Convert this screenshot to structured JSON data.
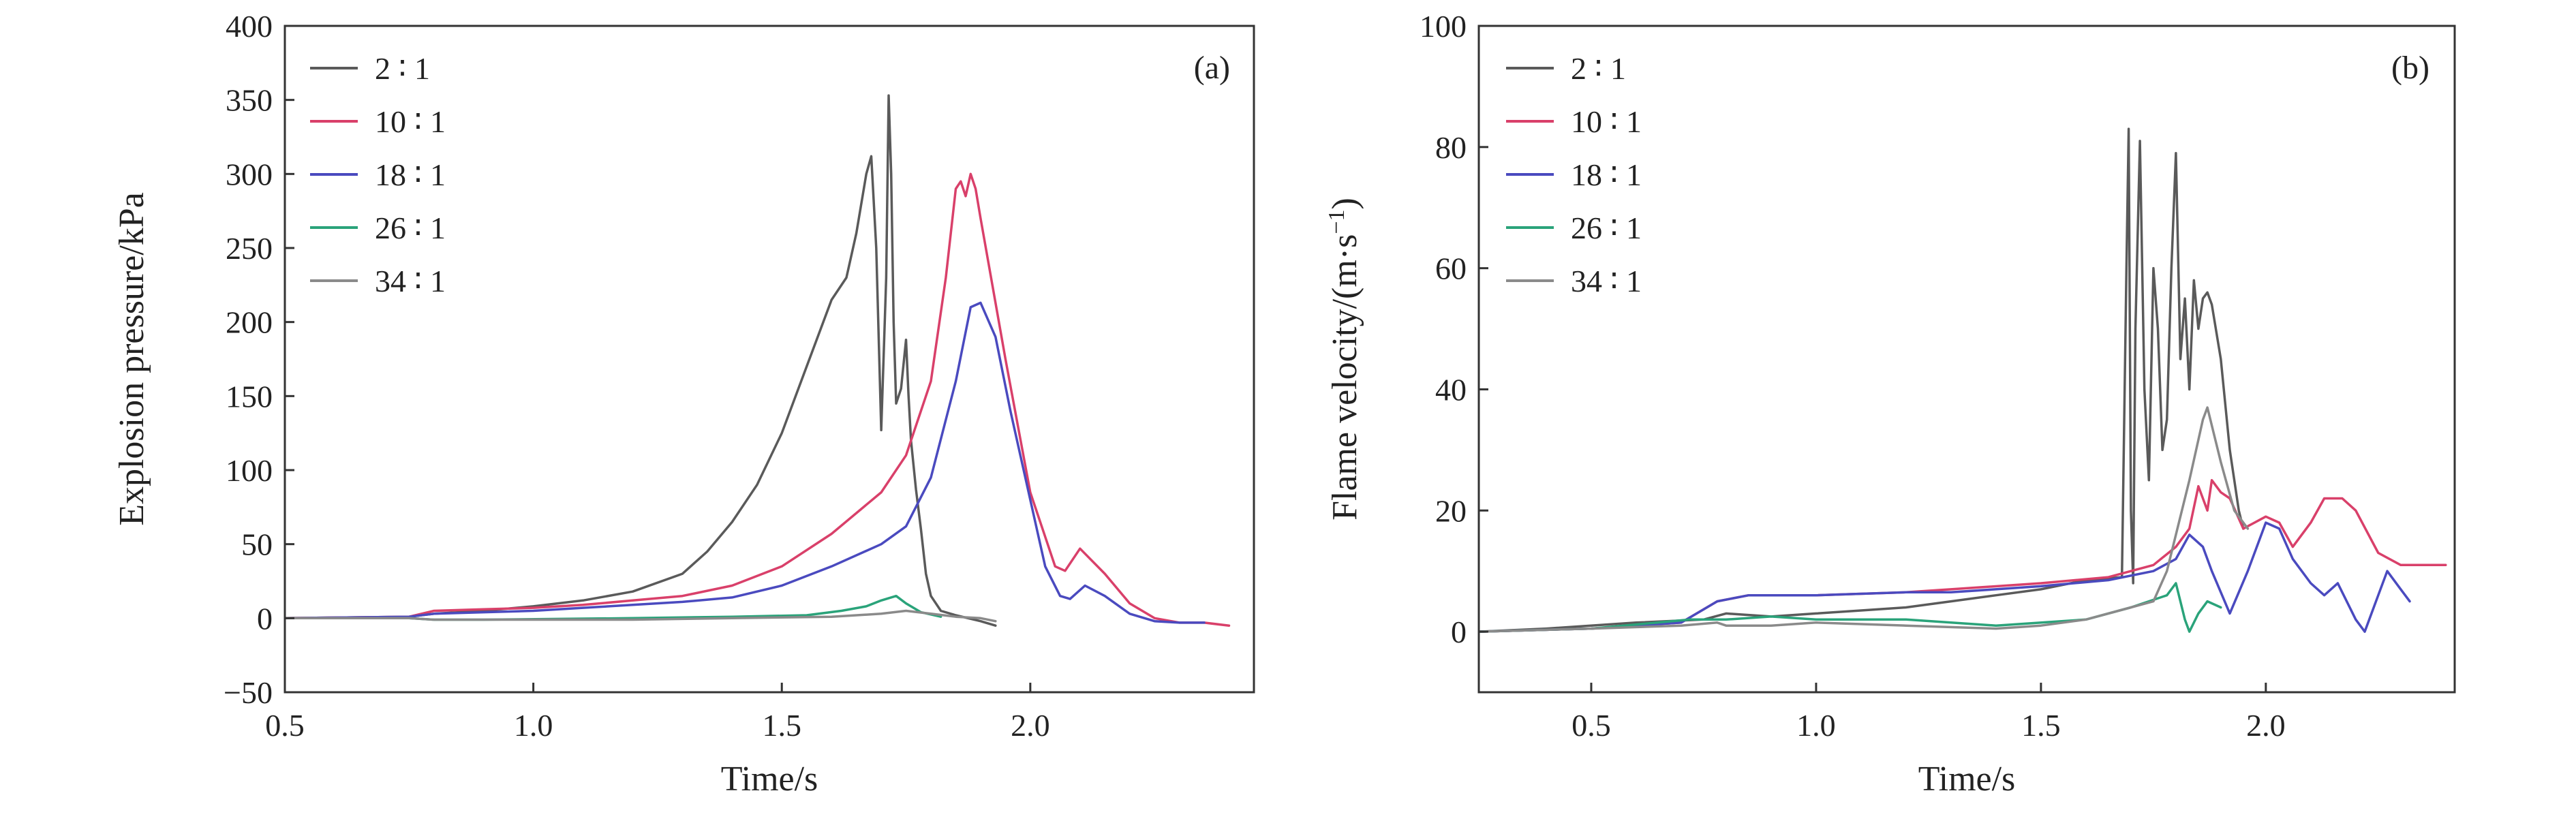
{
  "chart_data": [
    {
      "type": "line",
      "panel_label": "(a)",
      "xlabel": "Time/s",
      "ylabel": "Explosion pressure/kPa",
      "ylabel_sup": "",
      "ylabel_tail": "",
      "xlim": [
        0.5,
        2.45
      ],
      "ylim": [
        -50,
        400
      ],
      "xticks": [
        0.5,
        1.0,
        1.5,
        2.0
      ],
      "xtick_labels": [
        "0.5",
        "1.0",
        "1.5",
        "2.0"
      ],
      "yticks": [
        -50,
        0,
        50,
        100,
        150,
        200,
        250,
        300,
        350,
        400
      ],
      "ytick_labels": [
        "−50",
        "0",
        "50",
        "100",
        "150",
        "200",
        "250",
        "300",
        "350",
        "400"
      ],
      "legend_position": "top-left",
      "series": [
        {
          "name": "2 ∶ 1",
          "color": "#5a5a5a",
          "points": [
            [
              0.5,
              0
            ],
            [
              0.75,
              1
            ],
            [
              0.8,
              3
            ],
            [
              0.9,
              5
            ],
            [
              1.0,
              8
            ],
            [
              1.1,
              12
            ],
            [
              1.2,
              18
            ],
            [
              1.3,
              30
            ],
            [
              1.35,
              45
            ],
            [
              1.4,
              65
            ],
            [
              1.45,
              90
            ],
            [
              1.5,
              125
            ],
            [
              1.55,
              170
            ],
            [
              1.6,
              215
            ],
            [
              1.63,
              230
            ],
            [
              1.65,
              260
            ],
            [
              1.67,
              300
            ],
            [
              1.68,
              312
            ],
            [
              1.69,
              250
            ],
            [
              1.7,
              127
            ],
            [
              1.71,
              230
            ],
            [
              1.715,
              353
            ],
            [
              1.72,
              300
            ],
            [
              1.725,
              200
            ],
            [
              1.73,
              145
            ],
            [
              1.74,
              155
            ],
            [
              1.75,
              188
            ],
            [
              1.755,
              150
            ],
            [
              1.76,
              120
            ],
            [
              1.77,
              87
            ],
            [
              1.78,
              60
            ],
            [
              1.79,
              30
            ],
            [
              1.8,
              15
            ],
            [
              1.82,
              5
            ],
            [
              1.85,
              2
            ],
            [
              1.9,
              -2
            ],
            [
              1.93,
              -5
            ]
          ]
        },
        {
          "name": "10 ∶ 1",
          "color": "#d9406a",
          "points": [
            [
              0.5,
              0
            ],
            [
              0.75,
              1
            ],
            [
              0.8,
              5
            ],
            [
              0.9,
              6
            ],
            [
              1.0,
              7
            ],
            [
              1.1,
              9
            ],
            [
              1.2,
              12
            ],
            [
              1.3,
              15
            ],
            [
              1.4,
              22
            ],
            [
              1.5,
              35
            ],
            [
              1.6,
              57
            ],
            [
              1.7,
              85
            ],
            [
              1.75,
              110
            ],
            [
              1.8,
              160
            ],
            [
              1.83,
              230
            ],
            [
              1.85,
              290
            ],
            [
              1.86,
              295
            ],
            [
              1.87,
              285
            ],
            [
              1.88,
              300
            ],
            [
              1.89,
              290
            ],
            [
              1.9,
              270
            ],
            [
              1.95,
              175
            ],
            [
              2.0,
              85
            ],
            [
              2.05,
              35
            ],
            [
              2.07,
              32
            ],
            [
              2.1,
              47
            ],
            [
              2.15,
              30
            ],
            [
              2.2,
              10
            ],
            [
              2.25,
              0
            ],
            [
              2.3,
              -3
            ],
            [
              2.35,
              -3
            ],
            [
              2.4,
              -5
            ]
          ]
        },
        {
          "name": "18 ∶ 1",
          "color": "#4a4abf",
          "points": [
            [
              0.5,
              0
            ],
            [
              0.75,
              1
            ],
            [
              0.8,
              3
            ],
            [
              0.9,
              4
            ],
            [
              1.0,
              5
            ],
            [
              1.1,
              7
            ],
            [
              1.2,
              9
            ],
            [
              1.3,
              11
            ],
            [
              1.4,
              14
            ],
            [
              1.5,
              22
            ],
            [
              1.6,
              35
            ],
            [
              1.7,
              50
            ],
            [
              1.75,
              62
            ],
            [
              1.8,
              95
            ],
            [
              1.85,
              160
            ],
            [
              1.88,
              210
            ],
            [
              1.9,
              213
            ],
            [
              1.93,
              190
            ],
            [
              1.96,
              140
            ],
            [
              2.0,
              80
            ],
            [
              2.03,
              35
            ],
            [
              2.06,
              15
            ],
            [
              2.08,
              13
            ],
            [
              2.11,
              22
            ],
            [
              2.15,
              15
            ],
            [
              2.2,
              3
            ],
            [
              2.25,
              -2
            ],
            [
              2.3,
              -3
            ],
            [
              2.35,
              -3
            ]
          ]
        },
        {
          "name": "26 ∶ 1",
          "color": "#2aa37a",
          "points": [
            [
              0.5,
              0
            ],
            [
              0.75,
              0
            ],
            [
              0.8,
              -1
            ],
            [
              0.9,
              -1
            ],
            [
              1.2,
              0
            ],
            [
              1.4,
              1
            ],
            [
              1.55,
              2
            ],
            [
              1.62,
              5
            ],
            [
              1.67,
              8
            ],
            [
              1.7,
              12
            ],
            [
              1.73,
              15
            ],
            [
              1.75,
              10
            ],
            [
              1.78,
              4
            ],
            [
              1.82,
              1
            ]
          ]
        },
        {
          "name": "34 ∶ 1",
          "color": "#8a8a8a",
          "points": [
            [
              0.5,
              0
            ],
            [
              0.75,
              0
            ],
            [
              0.8,
              -1
            ],
            [
              0.9,
              -1
            ],
            [
              1.0,
              -1
            ],
            [
              1.2,
              -1
            ],
            [
              1.4,
              0
            ],
            [
              1.6,
              1
            ],
            [
              1.7,
              3
            ],
            [
              1.75,
              5
            ],
            [
              1.8,
              3
            ],
            [
              1.85,
              1
            ],
            [
              1.9,
              0
            ],
            [
              1.93,
              -2
            ]
          ]
        }
      ]
    },
    {
      "type": "line",
      "panel_label": "(b)",
      "xlabel": "Time/s",
      "ylabel": "Flame velocity/(m·s",
      "ylabel_sup": "−1",
      "ylabel_tail": ")",
      "xlim": [
        0.25,
        2.42
      ],
      "ylim": [
        -10,
        100
      ],
      "xticks": [
        0.5,
        1.0,
        1.5,
        2.0
      ],
      "xtick_labels": [
        "0.5",
        "1.0",
        "1.5",
        "2.0"
      ],
      "yticks": [
        0,
        20,
        40,
        60,
        80,
        100
      ],
      "ytick_labels": [
        "0",
        "20",
        "40",
        "60",
        "80",
        "100"
      ],
      "legend_position": "top-left",
      "series": [
        {
          "name": "2 ∶ 1",
          "color": "#5a5a5a",
          "points": [
            [
              0.25,
              0
            ],
            [
              0.4,
              0.5
            ],
            [
              0.6,
              1.5
            ],
            [
              0.75,
              2
            ],
            [
              0.8,
              3
            ],
            [
              0.9,
              2.5
            ],
            [
              1.0,
              3
            ],
            [
              1.1,
              3.5
            ],
            [
              1.2,
              4
            ],
            [
              1.3,
              5
            ],
            [
              1.4,
              6
            ],
            [
              1.5,
              7
            ],
            [
              1.6,
              8.5
            ],
            [
              1.68,
              9
            ],
            [
              1.69,
              60
            ],
            [
              1.695,
              83
            ],
            [
              1.7,
              20
            ],
            [
              1.705,
              8
            ],
            [
              1.71,
              50
            ],
            [
              1.72,
              81
            ],
            [
              1.73,
              40
            ],
            [
              1.74,
              25
            ],
            [
              1.75,
              60
            ],
            [
              1.76,
              50
            ],
            [
              1.77,
              30
            ],
            [
              1.78,
              35
            ],
            [
              1.79,
              60
            ],
            [
              1.8,
              79
            ],
            [
              1.81,
              45
            ],
            [
              1.82,
              55
            ],
            [
              1.83,
              40
            ],
            [
              1.84,
              58
            ],
            [
              1.85,
              50
            ],
            [
              1.86,
              55
            ],
            [
              1.87,
              56
            ],
            [
              1.88,
              54
            ],
            [
              1.9,
              45
            ],
            [
              1.92,
              30
            ],
            [
              1.94,
              20
            ],
            [
              1.95,
              17
            ]
          ]
        },
        {
          "name": "10 ∶ 1",
          "color": "#d9406a",
          "points": [
            [
              0.25,
              0
            ],
            [
              0.5,
              0.5
            ],
            [
              0.7,
              1.5
            ],
            [
              0.78,
              5
            ],
            [
              0.85,
              6
            ],
            [
              1.0,
              6
            ],
            [
              1.2,
              6.5
            ],
            [
              1.3,
              7
            ],
            [
              1.5,
              8
            ],
            [
              1.65,
              9
            ],
            [
              1.75,
              11
            ],
            [
              1.8,
              14
            ],
            [
              1.83,
              17
            ],
            [
              1.85,
              24
            ],
            [
              1.87,
              20
            ],
            [
              1.88,
              25
            ],
            [
              1.9,
              23
            ],
            [
              1.92,
              22
            ],
            [
              1.95,
              17
            ],
            [
              2.0,
              19
            ],
            [
              2.03,
              18
            ],
            [
              2.06,
              14
            ],
            [
              2.1,
              18
            ],
            [
              2.13,
              22
            ],
            [
              2.17,
              22
            ],
            [
              2.2,
              20
            ],
            [
              2.25,
              13
            ],
            [
              2.3,
              11
            ],
            [
              2.35,
              11
            ],
            [
              2.4,
              11
            ]
          ]
        },
        {
          "name": "18 ∶ 1",
          "color": "#4a4abf",
          "points": [
            [
              0.25,
              0
            ],
            [
              0.5,
              0.5
            ],
            [
              0.7,
              1.5
            ],
            [
              0.78,
              5
            ],
            [
              0.85,
              6
            ],
            [
              1.0,
              6
            ],
            [
              1.2,
              6.5
            ],
            [
              1.3,
              6.5
            ],
            [
              1.5,
              7.5
            ],
            [
              1.65,
              8.5
            ],
            [
              1.75,
              10
            ],
            [
              1.8,
              12
            ],
            [
              1.83,
              16
            ],
            [
              1.86,
              14
            ],
            [
              1.88,
              10
            ],
            [
              1.92,
              3
            ],
            [
              1.96,
              10
            ],
            [
              2.0,
              18
            ],
            [
              2.03,
              17
            ],
            [
              2.06,
              12
            ],
            [
              2.1,
              8
            ],
            [
              2.13,
              6
            ],
            [
              2.16,
              8
            ],
            [
              2.2,
              2
            ],
            [
              2.22,
              0
            ],
            [
              2.25,
              6
            ],
            [
              2.27,
              10
            ],
            [
              2.3,
              7
            ],
            [
              2.32,
              5
            ]
          ]
        },
        {
          "name": "26 ∶ 1",
          "color": "#2aa37a",
          "points": [
            [
              0.25,
              0
            ],
            [
              0.5,
              0.5
            ],
            [
              0.72,
              2
            ],
            [
              0.8,
              2
            ],
            [
              0.9,
              2.5
            ],
            [
              1.0,
              2
            ],
            [
              1.2,
              2
            ],
            [
              1.4,
              1
            ],
            [
              1.6,
              2
            ],
            [
              1.7,
              4
            ],
            [
              1.78,
              6
            ],
            [
              1.8,
              8
            ],
            [
              1.82,
              2
            ],
            [
              1.83,
              0
            ],
            [
              1.85,
              3
            ],
            [
              1.87,
              5
            ],
            [
              1.9,
              4
            ]
          ]
        },
        {
          "name": "34 ∶ 1",
          "color": "#8a8a8a",
          "points": [
            [
              0.25,
              0
            ],
            [
              0.5,
              0.5
            ],
            [
              0.7,
              1
            ],
            [
              0.78,
              1.5
            ],
            [
              0.8,
              1
            ],
            [
              0.9,
              1
            ],
            [
              1.0,
              1.5
            ],
            [
              1.2,
              1
            ],
            [
              1.4,
              0.5
            ],
            [
              1.5,
              1
            ],
            [
              1.6,
              2
            ],
            [
              1.7,
              4
            ],
            [
              1.75,
              5
            ],
            [
              1.78,
              10
            ],
            [
              1.8,
              16
            ],
            [
              1.83,
              25
            ],
            [
              1.86,
              35
            ],
            [
              1.87,
              37
            ],
            [
              1.9,
              28
            ],
            [
              1.93,
              20
            ],
            [
              1.96,
              17
            ]
          ]
        }
      ]
    }
  ]
}
